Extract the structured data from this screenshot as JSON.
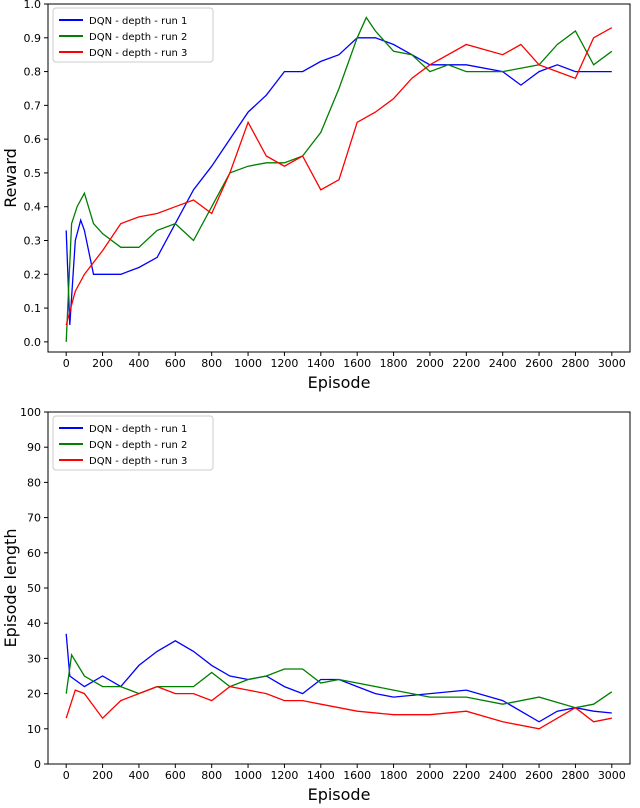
{
  "chart_data": [
    {
      "type": "line",
      "xlabel": "Episode",
      "ylabel": "Reward",
      "xlim": [
        -100,
        3100
      ],
      "ylim": [
        -0.03,
        1.0
      ],
      "xticks": [
        0,
        200,
        400,
        600,
        800,
        1000,
        1200,
        1400,
        1600,
        1800,
        2000,
        2200,
        2400,
        2600,
        2800,
        3000
      ],
      "yticks": [
        {
          "value": 0,
          "label": "0.0"
        },
        {
          "value": 0.1,
          "label": "0.1"
        },
        {
          "value": 0.2,
          "label": "0.2"
        },
        {
          "value": 0.3,
          "label": "0.3"
        },
        {
          "value": 0.4,
          "label": "0.4"
        },
        {
          "value": 0.5,
          "label": "0.5"
        },
        {
          "value": 0.6,
          "label": "0.6"
        },
        {
          "value": 0.7,
          "label": "0.7"
        },
        {
          "value": 0.8,
          "label": "0.8"
        },
        {
          "value": 0.9,
          "label": "0.9"
        },
        {
          "value": 1.0,
          "label": "1.0"
        }
      ],
      "legend": "upper left",
      "series": [
        {
          "name": "DQN - depth - run 1",
          "color": "#0000ff",
          "x": [
            0,
            20,
            50,
            80,
            100,
            150,
            200,
            300,
            400,
            500,
            600,
            700,
            800,
            900,
            1000,
            1100,
            1200,
            1300,
            1400,
            1500,
            1600,
            1700,
            1800,
            1900,
            2000,
            2200,
            2400,
            2500,
            2600,
            2700,
            2800,
            2900,
            3000
          ],
          "values": [
            0.33,
            0.05,
            0.3,
            0.36,
            0.33,
            0.2,
            0.2,
            0.2,
            0.22,
            0.25,
            0.35,
            0.45,
            0.52,
            0.6,
            0.68,
            0.73,
            0.8,
            0.8,
            0.83,
            0.85,
            0.9,
            0.9,
            0.88,
            0.85,
            0.82,
            0.82,
            0.8,
            0.76,
            0.8,
            0.82,
            0.8,
            0.8,
            0.8
          ]
        },
        {
          "name": "DQN - depth - run 2",
          "color": "#007f00",
          "x": [
            0,
            30,
            60,
            100,
            150,
            200,
            300,
            400,
            500,
            600,
            700,
            800,
            900,
            1000,
            1100,
            1200,
            1300,
            1400,
            1500,
            1600,
            1650,
            1700,
            1800,
            1900,
            2000,
            2100,
            2200,
            2400,
            2600,
            2700,
            2800,
            2900,
            3000
          ],
          "values": [
            0.0,
            0.35,
            0.4,
            0.44,
            0.35,
            0.32,
            0.28,
            0.28,
            0.33,
            0.35,
            0.3,
            0.4,
            0.5,
            0.52,
            0.53,
            0.53,
            0.55,
            0.62,
            0.75,
            0.9,
            0.96,
            0.92,
            0.86,
            0.85,
            0.8,
            0.82,
            0.8,
            0.8,
            0.82,
            0.88,
            0.92,
            0.82,
            0.86
          ]
        },
        {
          "name": "DQN - depth - run 3",
          "color": "#ff0000",
          "x": [
            0,
            50,
            100,
            200,
            300,
            400,
            500,
            600,
            700,
            800,
            900,
            1000,
            1100,
            1200,
            1300,
            1400,
            1500,
            1600,
            1700,
            1800,
            1900,
            2000,
            2200,
            2400,
            2500,
            2600,
            2700,
            2800,
            2900,
            3000
          ],
          "values": [
            0.05,
            0.15,
            0.2,
            0.27,
            0.35,
            0.37,
            0.38,
            0.4,
            0.42,
            0.38,
            0.5,
            0.65,
            0.55,
            0.52,
            0.55,
            0.45,
            0.48,
            0.65,
            0.68,
            0.72,
            0.78,
            0.82,
            0.88,
            0.85,
            0.88,
            0.82,
            0.8,
            0.78,
            0.9,
            0.93
          ]
        }
      ]
    },
    {
      "type": "line",
      "xlabel": "Episode",
      "ylabel": "Episode length",
      "xlim": [
        -100,
        3100
      ],
      "ylim": [
        0,
        100
      ],
      "xticks": [
        0,
        200,
        400,
        600,
        800,
        1000,
        1200,
        1400,
        1600,
        1800,
        2000,
        2200,
        2400,
        2600,
        2800,
        3000
      ],
      "yticks": [
        0,
        10,
        20,
        30,
        40,
        50,
        60,
        70,
        80,
        90,
        100
      ],
      "legend": "upper left",
      "series": [
        {
          "name": "DQN - depth - run 1",
          "color": "#0000ff",
          "x": [
            0,
            20,
            100,
            200,
            300,
            400,
            500,
            600,
            700,
            800,
            900,
            1000,
            1100,
            1200,
            1300,
            1400,
            1500,
            1600,
            1700,
            1800,
            2000,
            2200,
            2400,
            2600,
            2700,
            2800,
            2900,
            3000
          ],
          "values": [
            37,
            25,
            22,
            25,
            22,
            28,
            32,
            35,
            32,
            28,
            25,
            24,
            25,
            22,
            20,
            24,
            24,
            22,
            20,
            19,
            20,
            21,
            18,
            12,
            15,
            16,
            15,
            14.5
          ]
        },
        {
          "name": "DQN - depth - run 2",
          "color": "#007f00",
          "x": [
            0,
            30,
            100,
            200,
            300,
            400,
            500,
            600,
            700,
            800,
            900,
            1000,
            1100,
            1200,
            1300,
            1400,
            1500,
            1600,
            1800,
            2000,
            2200,
            2400,
            2600,
            2800,
            2900,
            3000
          ],
          "values": [
            20,
            31,
            25,
            22,
            22,
            20,
            22,
            22,
            22,
            26,
            22,
            24,
            25,
            27,
            27,
            23,
            24,
            23,
            21,
            19,
            19,
            17,
            19,
            16,
            17,
            20.5
          ]
        },
        {
          "name": "DQN - depth - run 3",
          "color": "#ff0000",
          "x": [
            0,
            50,
            100,
            200,
            300,
            400,
            500,
            600,
            700,
            800,
            900,
            1000,
            1100,
            1200,
            1300,
            1400,
            1600,
            1800,
            2000,
            2200,
            2400,
            2600,
            2800,
            2900,
            3000
          ],
          "values": [
            13,
            21,
            20,
            13,
            18,
            20,
            22,
            20,
            20,
            18,
            22,
            21,
            20,
            18,
            18,
            17,
            15,
            14,
            14,
            15,
            12,
            10,
            16,
            12,
            13
          ]
        }
      ]
    }
  ]
}
